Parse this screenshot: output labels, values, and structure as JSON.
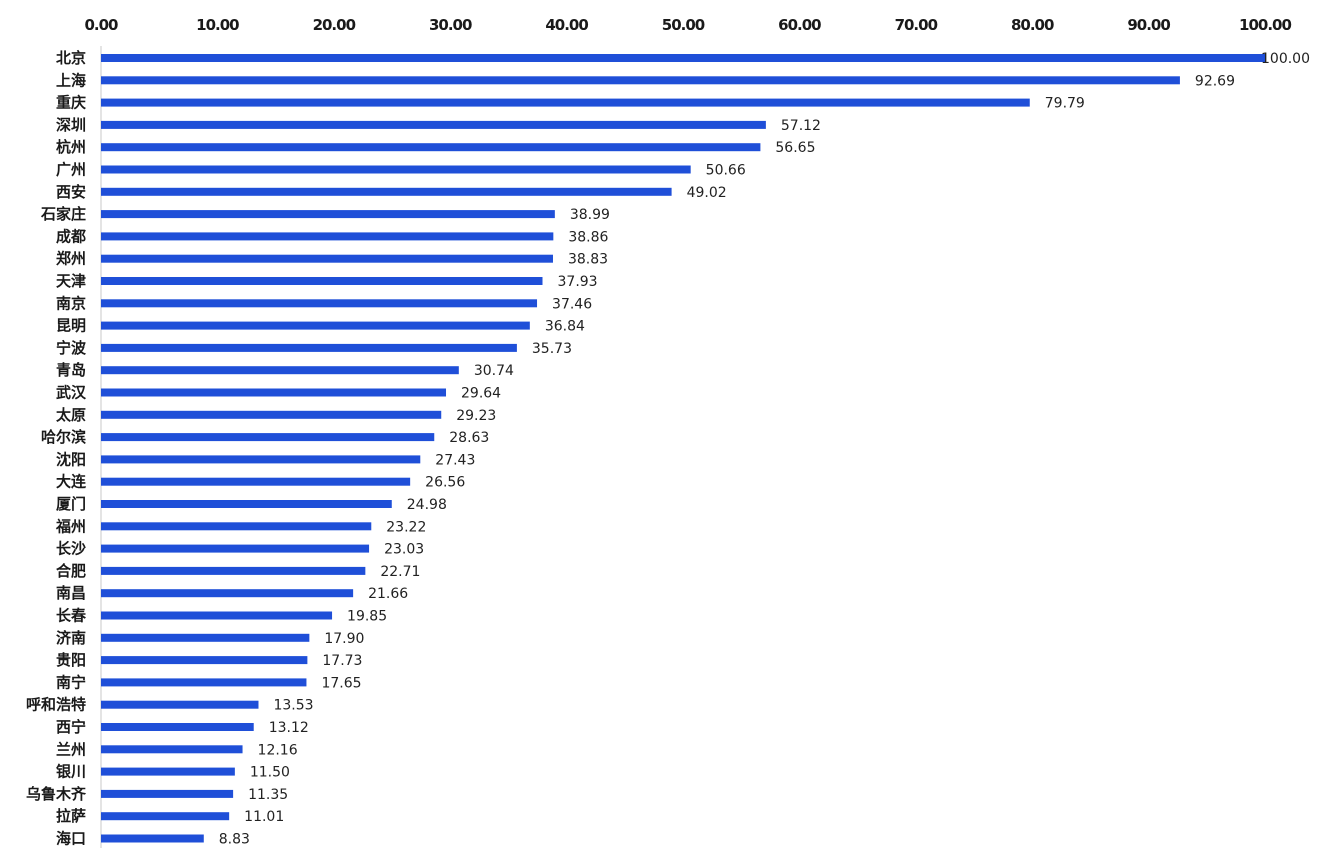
{
  "chart_data": {
    "type": "bar",
    "orientation": "horizontal",
    "title": "",
    "xlabel": "",
    "ylabel": "",
    "xlim": [
      0,
      100
    ],
    "x_ticks": [
      "0.00",
      "10.00",
      "20.00",
      "30.00",
      "40.00",
      "50.00",
      "60.00",
      "70.00",
      "80.00",
      "90.00",
      "100.00"
    ],
    "x_axis_position": "top",
    "grid": false,
    "legend": "none",
    "bar_color": "#1f4fd8",
    "categories": [
      "北京",
      "上海",
      "重庆",
      "深圳",
      "杭州",
      "广州",
      "西安",
      "石家庄",
      "成都",
      "郑州",
      "天津",
      "南京",
      "昆明",
      "宁波",
      "青岛",
      "武汉",
      "太原",
      "哈尔滨",
      "沈阳",
      "大连",
      "厦门",
      "福州",
      "长沙",
      "合肥",
      "南昌",
      "长春",
      "济南",
      "贵阳",
      "南宁",
      "呼和浩特",
      "西宁",
      "兰州",
      "银川",
      "乌鲁木齐",
      "拉萨",
      "海口"
    ],
    "values": [
      100.0,
      92.69,
      79.79,
      57.12,
      56.65,
      50.66,
      49.02,
      38.99,
      38.86,
      38.83,
      37.93,
      37.46,
      36.84,
      35.73,
      30.74,
      29.64,
      29.23,
      28.63,
      27.43,
      26.56,
      24.98,
      23.22,
      23.03,
      22.71,
      21.66,
      19.85,
      17.9,
      17.73,
      17.65,
      13.53,
      13.12,
      12.16,
      11.5,
      11.35,
      11.01,
      8.83
    ],
    "data_labels": [
      "100.00",
      "92.69",
      "79.79",
      "57.12",
      "56.65",
      "50.66",
      "49.02",
      "38.99",
      "38.86",
      "38.83",
      "37.93",
      "37.46",
      "36.84",
      "35.73",
      "30.74",
      "29.64",
      "29.23",
      "28.63",
      "27.43",
      "26.56",
      "24.98",
      "23.22",
      "23.03",
      "22.71",
      "21.66",
      "19.85",
      "17.90",
      "17.73",
      "17.65",
      "13.53",
      "13.12",
      "12.16",
      "11.50",
      "11.35",
      "11.01",
      "8.83"
    ]
  }
}
